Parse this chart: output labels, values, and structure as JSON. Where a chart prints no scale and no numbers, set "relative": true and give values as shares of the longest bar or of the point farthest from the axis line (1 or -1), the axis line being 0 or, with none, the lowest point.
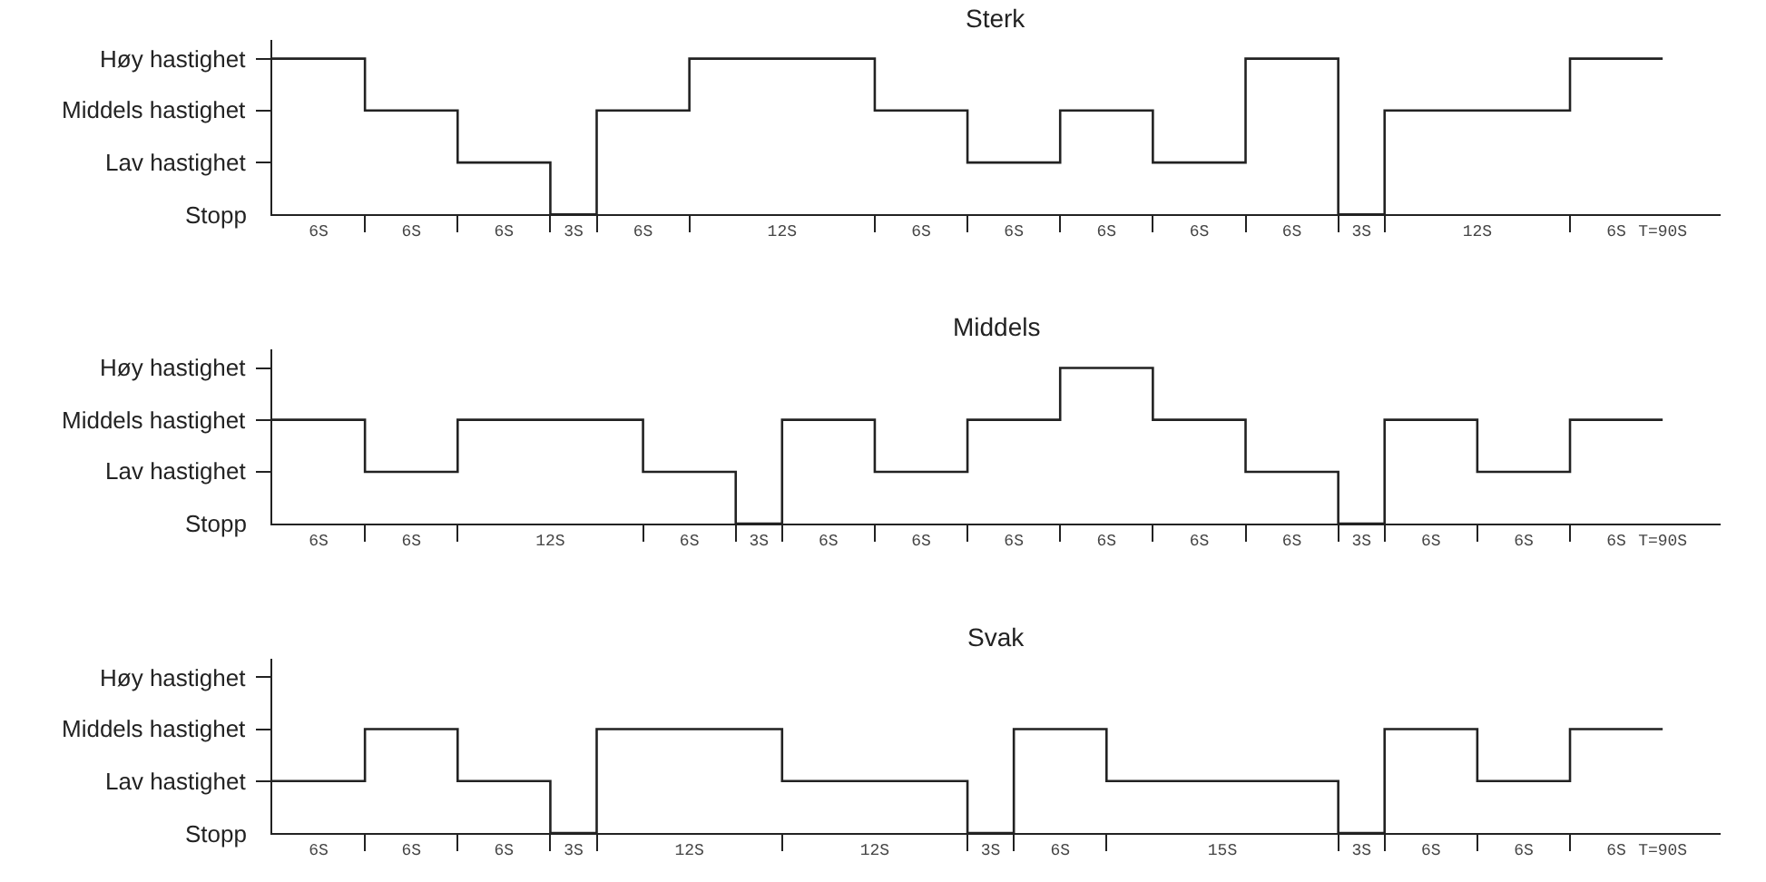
{
  "chart_data": [
    {
      "type": "step",
      "title": "Sterk",
      "relative": true,
      "annotations": [
        "Høy hastighet",
        "Middels hastighet",
        "Lav hastighet",
        "Stopp"
      ],
      "categories": [
        null,
        null,
        "6S",
        null,
        null,
        null,
        "6S",
        null,
        null,
        null,
        "6S",
        null,
        null,
        "3S",
        null,
        null,
        "6S",
        null,
        null,
        null,
        null,
        null,
        "12S",
        null,
        null,
        null,
        null,
        null,
        "6S",
        null,
        null,
        null,
        "6S",
        null,
        null,
        null,
        "6S",
        null,
        null,
        null,
        "6S",
        null,
        null,
        null,
        "6S",
        null,
        null,
        "3S",
        null,
        null,
        null,
        null,
        "12S",
        null,
        null,
        null,
        null,
        null,
        "6S",
        null,
        "T=90S"
      ],
      "series": [
        {
          "color": "#222222",
          "values": [
            1,
            1,
            1,
            1,
            0.667,
            0.667,
            0.667,
            0.667,
            0.333,
            0.333,
            0.333,
            0.333,
            0,
            0,
            0.667,
            0.667,
            0.667,
            0.667,
            1,
            1,
            1,
            1,
            1,
            1,
            1,
            1,
            0.667,
            0.667,
            0.667,
            0.667,
            0.333,
            0.333,
            0.333,
            0.333,
            0.667,
            0.667,
            0.667,
            0.667,
            0.333,
            0.333,
            0.333,
            0.333,
            1,
            1,
            1,
            1,
            0,
            0,
            0.667,
            0.667,
            0.667,
            0.667,
            0.667,
            0.667,
            0.667,
            0.667,
            1,
            1,
            1,
            1,
            1
          ]
        }
      ]
    },
    {
      "type": "step",
      "title": "Middels",
      "relative": true,
      "annotations": [
        "Høy hastighet",
        "Middels hastighet",
        "Lav hastighet",
        "Stopp"
      ],
      "categories": [
        null,
        null,
        "6S",
        null,
        null,
        null,
        "6S",
        null,
        null,
        null,
        null,
        null,
        "12S",
        null,
        null,
        null,
        null,
        null,
        "6S",
        null,
        null,
        "3S",
        null,
        null,
        "6S",
        null,
        null,
        null,
        "6S",
        null,
        null,
        null,
        "6S",
        null,
        null,
        null,
        "6S",
        null,
        null,
        null,
        "6S",
        null,
        null,
        null,
        "6S",
        null,
        null,
        "3S",
        null,
        null,
        "6S",
        null,
        null,
        null,
        "6S",
        null,
        null,
        null,
        "6S",
        null,
        "T=90S"
      ],
      "series": [
        {
          "color": "#222222",
          "values": [
            0.667,
            0.667,
            0.667,
            0.667,
            0.333,
            0.333,
            0.333,
            0.333,
            0.667,
            0.667,
            0.667,
            0.667,
            0.667,
            0.667,
            0.667,
            0.667,
            0.333,
            0.333,
            0.333,
            0.333,
            0,
            0,
            0.667,
            0.667,
            0.667,
            0.667,
            0.333,
            0.333,
            0.333,
            0.333,
            0.667,
            0.667,
            0.667,
            0.667,
            1,
            1,
            1,
            1,
            0.667,
            0.667,
            0.667,
            0.667,
            0.333,
            0.333,
            0.333,
            0.333,
            0,
            0,
            0.667,
            0.667,
            0.667,
            0.667,
            0.333,
            0.333,
            0.333,
            0.333,
            0.667,
            0.667,
            0.667,
            0.667,
            0.667
          ]
        }
      ]
    },
    {
      "type": "step",
      "title": "Svak",
      "relative": true,
      "annotations": [
        "Høy hastighet",
        "Middels hastighet",
        "Lav hastighet",
        "Stopp"
      ],
      "categories": [
        null,
        null,
        "6S",
        null,
        null,
        null,
        "6S",
        null,
        null,
        null,
        "6S",
        null,
        null,
        "3S",
        null,
        null,
        null,
        null,
        "12S",
        null,
        null,
        null,
        null,
        null,
        null,
        null,
        "12S",
        null,
        null,
        null,
        null,
        "3S",
        null,
        null,
        "6S",
        null,
        null,
        null,
        null,
        null,
        null,
        "15S",
        null,
        null,
        null,
        null,
        null,
        "3S",
        null,
        null,
        "6S",
        null,
        null,
        null,
        "6S",
        null,
        null,
        null,
        "6S",
        null,
        "T=90S"
      ],
      "series": [
        {
          "color": "#222222",
          "values": [
            0.5,
            0.5,
            0.5,
            0.5,
            1,
            1,
            1,
            1,
            0.5,
            0.5,
            0.5,
            0.5,
            0,
            0,
            1,
            1,
            1,
            1,
            1,
            1,
            1,
            1,
            0.5,
            0.5,
            0.5,
            0.5,
            0.5,
            0.5,
            0.5,
            0.5,
            0,
            0,
            1,
            1,
            1,
            1,
            0.5,
            0.5,
            0.5,
            0.5,
            0.5,
            0.5,
            0.5,
            0.5,
            0.5,
            0.5,
            0,
            0,
            1,
            1,
            1,
            1,
            0.5,
            0.5,
            0.5,
            0.5,
            1,
            1,
            1,
            1,
            1
          ]
        }
      ]
    }
  ]
}
